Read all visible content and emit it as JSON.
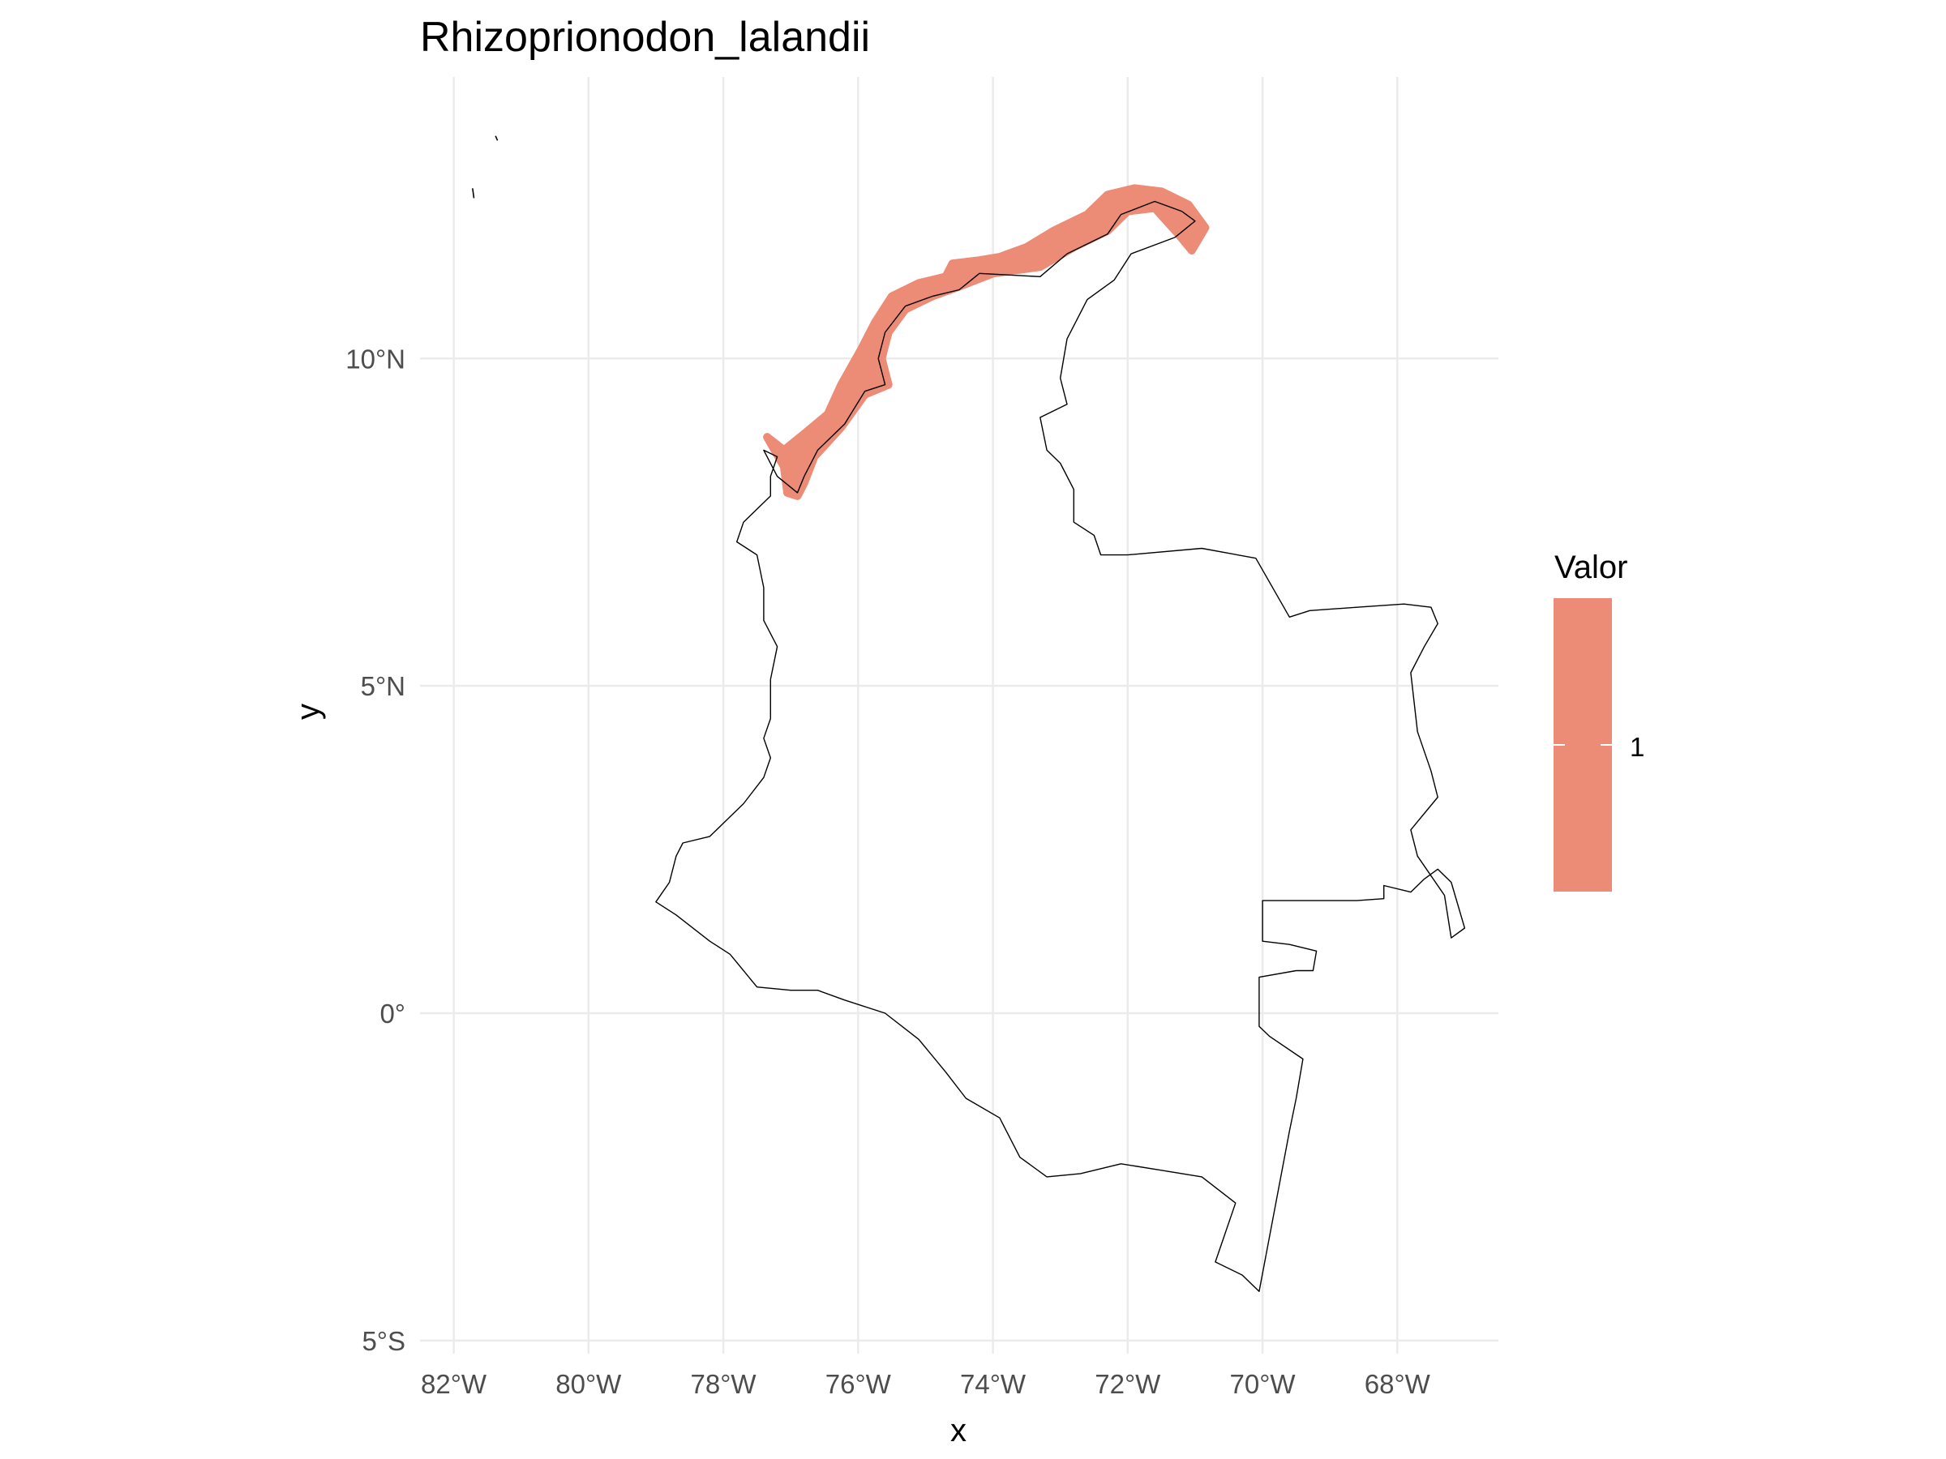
{
  "chart_data": {
    "type": "map",
    "title": "Rhizoprionodon_lalandii",
    "xlabel": "x",
    "ylabel": "y",
    "x_ticks": [
      {
        "value": -82,
        "label": "82°W"
      },
      {
        "value": -80,
        "label": "80°W"
      },
      {
        "value": -78,
        "label": "78°W"
      },
      {
        "value": -76,
        "label": "76°W"
      },
      {
        "value": -74,
        "label": "74°W"
      },
      {
        "value": -72,
        "label": "72°W"
      },
      {
        "value": -70,
        "label": "70°W"
      },
      {
        "value": -68,
        "label": "68°W"
      }
    ],
    "y_ticks": [
      {
        "value": -5,
        "label": "5°S"
      },
      {
        "value": 0,
        "label": "0°"
      },
      {
        "value": 5,
        "label": "5°N"
      },
      {
        "value": 10,
        "label": "10°N"
      }
    ],
    "xlim": [
      -82.5,
      -66.5
    ],
    "ylim": [
      -5.2,
      14.3
    ],
    "grid": true,
    "legend": {
      "title": "Valor",
      "position": "right",
      "entries": [
        {
          "label": "1",
          "value": 1,
          "color": "#ec8b76"
        }
      ]
    },
    "colors": {
      "fill": "#ec8b76",
      "outline": "#000000",
      "grid": "#ebebeb"
    },
    "country_outline": [
      [
        -77.4,
        8.6
      ],
      [
        -77.2,
        8.5
      ],
      [
        -77.3,
        8.2
      ],
      [
        -77.3,
        7.9
      ],
      [
        -77.7,
        7.5
      ],
      [
        -77.8,
        7.2
      ],
      [
        -77.5,
        7.0
      ],
      [
        -77.4,
        6.5
      ],
      [
        -77.4,
        6.0
      ],
      [
        -77.2,
        5.6
      ],
      [
        -77.3,
        5.1
      ],
      [
        -77.3,
        4.5
      ],
      [
        -77.4,
        4.2
      ],
      [
        -77.3,
        3.9
      ],
      [
        -77.4,
        3.6
      ],
      [
        -77.7,
        3.2
      ],
      [
        -78.2,
        2.7
      ],
      [
        -78.6,
        2.6
      ],
      [
        -78.7,
        2.4
      ],
      [
        -78.8,
        2.0
      ],
      [
        -79.0,
        1.7
      ],
      [
        -78.7,
        1.5
      ],
      [
        -78.2,
        1.1
      ],
      [
        -77.9,
        0.9
      ],
      [
        -77.5,
        0.4
      ],
      [
        -77.0,
        0.35
      ],
      [
        -76.6,
        0.35
      ],
      [
        -76.2,
        0.2
      ],
      [
        -75.6,
        0.0
      ],
      [
        -75.1,
        -0.4
      ],
      [
        -74.7,
        -0.9
      ],
      [
        -74.4,
        -1.3
      ],
      [
        -73.9,
        -1.6
      ],
      [
        -73.6,
        -2.2
      ],
      [
        -73.2,
        -2.5
      ],
      [
        -72.7,
        -2.45
      ],
      [
        -72.1,
        -2.3
      ],
      [
        -71.5,
        -2.4
      ],
      [
        -70.9,
        -2.5
      ],
      [
        -70.4,
        -2.9
      ],
      [
        -70.7,
        -3.8
      ],
      [
        -70.3,
        -4.0
      ],
      [
        -70.05,
        -4.25
      ],
      [
        -69.6,
        -1.8
      ],
      [
        -69.5,
        -1.3
      ],
      [
        -69.4,
        -0.7
      ],
      [
        -69.9,
        -0.35
      ],
      [
        -70.05,
        -0.2
      ],
      [
        -70.05,
        0.55
      ],
      [
        -69.5,
        0.65
      ],
      [
        -69.25,
        0.65
      ],
      [
        -69.2,
        0.95
      ],
      [
        -69.6,
        1.05
      ],
      [
        -70.0,
        1.1
      ],
      [
        -70.0,
        1.72
      ],
      [
        -68.6,
        1.72
      ],
      [
        -68.2,
        1.75
      ],
      [
        -68.2,
        1.95
      ],
      [
        -67.8,
        1.85
      ],
      [
        -67.6,
        2.05
      ],
      [
        -67.4,
        2.2
      ],
      [
        -67.2,
        2.0
      ],
      [
        -67.0,
        1.3
      ],
      [
        -67.2,
        1.15
      ],
      [
        -67.3,
        1.8
      ],
      [
        -67.7,
        2.4
      ],
      [
        -67.8,
        2.8
      ],
      [
        -67.4,
        3.3
      ],
      [
        -67.5,
        3.7
      ],
      [
        -67.7,
        4.3
      ],
      [
        -67.8,
        5.2
      ],
      [
        -67.6,
        5.6
      ],
      [
        -67.4,
        5.95
      ],
      [
        -67.5,
        6.2
      ],
      [
        -67.9,
        6.25
      ],
      [
        -68.6,
        6.2
      ],
      [
        -69.3,
        6.15
      ],
      [
        -69.6,
        6.05
      ],
      [
        -70.1,
        6.95
      ],
      [
        -70.9,
        7.1
      ],
      [
        -72.0,
        7.0
      ],
      [
        -72.4,
        7.0
      ],
      [
        -72.5,
        7.3
      ],
      [
        -72.8,
        7.5
      ],
      [
        -72.8,
        8.0
      ],
      [
        -73.0,
        8.4
      ],
      [
        -73.2,
        8.6
      ],
      [
        -73.3,
        9.1
      ],
      [
        -72.9,
        9.3
      ],
      [
        -73.0,
        9.7
      ],
      [
        -72.9,
        10.3
      ],
      [
        -72.6,
        10.9
      ],
      [
        -72.2,
        11.2
      ],
      [
        -71.95,
        11.6
      ],
      [
        -71.3,
        11.85
      ],
      [
        -71.0,
        12.1
      ],
      [
        -71.2,
        12.25
      ],
      [
        -71.6,
        12.4
      ],
      [
        -72.1,
        12.2
      ],
      [
        -72.3,
        11.9
      ],
      [
        -72.9,
        11.6
      ],
      [
        -73.3,
        11.25
      ],
      [
        -74.2,
        11.3
      ],
      [
        -74.5,
        11.05
      ],
      [
        -74.9,
        10.95
      ],
      [
        -75.3,
        10.8
      ],
      [
        -75.6,
        10.4
      ],
      [
        -75.7,
        10.0
      ],
      [
        -75.6,
        9.6
      ],
      [
        -75.9,
        9.5
      ],
      [
        -76.2,
        9.0
      ],
      [
        -76.6,
        8.6
      ],
      [
        -76.8,
        8.2
      ],
      [
        -76.9,
        7.95
      ],
      [
        -77.2,
        8.2
      ],
      [
        -77.4,
        8.6
      ]
    ],
    "range_polygon": [
      [
        -77.35,
        8.8
      ],
      [
        -77.1,
        8.6
      ],
      [
        -76.8,
        8.85
      ],
      [
        -76.45,
        9.15
      ],
      [
        -76.25,
        9.6
      ],
      [
        -75.95,
        10.15
      ],
      [
        -75.75,
        10.55
      ],
      [
        -75.5,
        10.95
      ],
      [
        -75.1,
        11.15
      ],
      [
        -74.7,
        11.25
      ],
      [
        -74.6,
        11.45
      ],
      [
        -74.2,
        11.5
      ],
      [
        -73.9,
        11.55
      ],
      [
        -73.5,
        11.7
      ],
      [
        -73.1,
        11.95
      ],
      [
        -72.6,
        12.2
      ],
      [
        -72.3,
        12.5
      ],
      [
        -71.9,
        12.6
      ],
      [
        -71.5,
        12.55
      ],
      [
        -71.1,
        12.35
      ],
      [
        -70.85,
        12.0
      ],
      [
        -71.05,
        11.65
      ],
      [
        -71.25,
        11.9
      ],
      [
        -71.6,
        12.3
      ],
      [
        -72.0,
        12.25
      ],
      [
        -72.3,
        11.95
      ],
      [
        -72.8,
        11.7
      ],
      [
        -73.3,
        11.4
      ],
      [
        -74.0,
        11.3
      ],
      [
        -74.5,
        11.1
      ],
      [
        -74.9,
        10.95
      ],
      [
        -75.3,
        10.75
      ],
      [
        -75.55,
        10.4
      ],
      [
        -75.65,
        10.0
      ],
      [
        -75.55,
        9.6
      ],
      [
        -75.9,
        9.45
      ],
      [
        -76.25,
        8.95
      ],
      [
        -76.65,
        8.5
      ],
      [
        -76.8,
        8.1
      ],
      [
        -76.9,
        7.9
      ],
      [
        -77.05,
        7.95
      ],
      [
        -77.1,
        8.35
      ],
      [
        -77.35,
        8.8
      ]
    ],
    "islands": [
      [
        [
          -81.72,
          12.6
        ],
        [
          -81.7,
          12.45
        ]
      ],
      [
        [
          -81.38,
          13.4
        ],
        [
          -81.35,
          13.33
        ]
      ]
    ]
  }
}
